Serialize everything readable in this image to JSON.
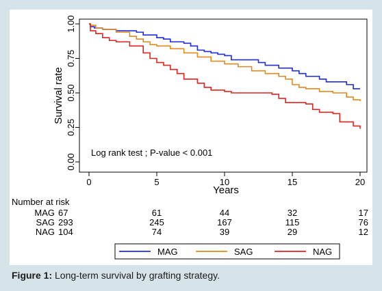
{
  "caption": {
    "label": "Figure 1:",
    "text": "Long-term survival by grafting strategy."
  },
  "annotation": "Log rank test ; P-value < 0.001",
  "risk_table": {
    "header": "Number at risk",
    "rows": [
      {
        "group": "MAG",
        "counts": [
          "67",
          "61",
          "44",
          "32",
          "17"
        ]
      },
      {
        "group": "SAG",
        "counts": [
          "293",
          "245",
          "167",
          "115",
          "76"
        ]
      },
      {
        "group": "NAG",
        "counts": [
          "104",
          "74",
          "39",
          "29",
          "12"
        ]
      }
    ]
  },
  "chart_data": {
    "type": "line",
    "step": true,
    "xlabel": "Years",
    "ylabel": "Survival rate",
    "xlim": [
      0,
      20
    ],
    "ylim": [
      0,
      1
    ],
    "xticks": [
      "0",
      "5",
      "10",
      "15",
      "20"
    ],
    "yticks": [
      "0.00",
      "0.25",
      "0.50",
      "0.75",
      "1.00"
    ],
    "legend_position": "bottom",
    "series": [
      {
        "name": "MAG",
        "color": "#1f2bd4",
        "points": [
          [
            0,
            1.0
          ],
          [
            0.1,
            0.98
          ],
          [
            0.4,
            0.97
          ],
          [
            1.0,
            0.96
          ],
          [
            2.0,
            0.95
          ],
          [
            3.0,
            0.95
          ],
          [
            3.5,
            0.94
          ],
          [
            4.0,
            0.92
          ],
          [
            5.0,
            0.9
          ],
          [
            5.5,
            0.89
          ],
          [
            6.0,
            0.87
          ],
          [
            7.0,
            0.86
          ],
          [
            7.5,
            0.84
          ],
          [
            8.0,
            0.81
          ],
          [
            8.5,
            0.8
          ],
          [
            9.0,
            0.79
          ],
          [
            9.5,
            0.78
          ],
          [
            10.0,
            0.77
          ],
          [
            10.5,
            0.74
          ],
          [
            11.0,
            0.74
          ],
          [
            12.0,
            0.74
          ],
          [
            12.5,
            0.72
          ],
          [
            13.0,
            0.7
          ],
          [
            14.0,
            0.68
          ],
          [
            15.0,
            0.66
          ],
          [
            15.5,
            0.64
          ],
          [
            16.0,
            0.62
          ],
          [
            17.0,
            0.6
          ],
          [
            17.5,
            0.58
          ],
          [
            18.0,
            0.58
          ],
          [
            19.0,
            0.56
          ],
          [
            19.5,
            0.53
          ],
          [
            20.0,
            0.53
          ]
        ]
      },
      {
        "name": "SAG",
        "color": "#e08a1e",
        "points": [
          [
            0,
            1.0
          ],
          [
            0.1,
            0.99
          ],
          [
            0.5,
            0.97
          ],
          [
            1.0,
            0.96
          ],
          [
            2.0,
            0.94
          ],
          [
            3.0,
            0.91
          ],
          [
            3.5,
            0.89
          ],
          [
            4.0,
            0.87
          ],
          [
            4.5,
            0.85
          ],
          [
            5.0,
            0.84
          ],
          [
            6.0,
            0.82
          ],
          [
            7.0,
            0.79
          ],
          [
            8.0,
            0.76
          ],
          [
            9.0,
            0.73
          ],
          [
            10.0,
            0.71
          ],
          [
            11.0,
            0.69
          ],
          [
            12.0,
            0.66
          ],
          [
            13.0,
            0.64
          ],
          [
            14.0,
            0.62
          ],
          [
            14.5,
            0.6
          ],
          [
            15.0,
            0.56
          ],
          [
            15.5,
            0.54
          ],
          [
            16.0,
            0.53
          ],
          [
            17.0,
            0.51
          ],
          [
            18.0,
            0.5
          ],
          [
            19.0,
            0.47
          ],
          [
            19.5,
            0.45
          ],
          [
            20.0,
            0.44
          ]
        ]
      },
      {
        "name": "NAG",
        "color": "#e0231f",
        "points": [
          [
            0,
            1.0
          ],
          [
            0.1,
            0.95
          ],
          [
            0.5,
            0.93
          ],
          [
            1.0,
            0.9
          ],
          [
            1.5,
            0.88
          ],
          [
            2.0,
            0.87
          ],
          [
            3.0,
            0.84
          ],
          [
            4.0,
            0.79
          ],
          [
            4.5,
            0.75
          ],
          [
            5.0,
            0.72
          ],
          [
            5.5,
            0.7
          ],
          [
            6.0,
            0.67
          ],
          [
            6.5,
            0.64
          ],
          [
            7.0,
            0.6
          ],
          [
            8.0,
            0.57
          ],
          [
            8.5,
            0.54
          ],
          [
            9.0,
            0.52
          ],
          [
            10.0,
            0.51
          ],
          [
            10.5,
            0.5
          ],
          [
            12.0,
            0.5
          ],
          [
            13.5,
            0.49
          ],
          [
            14.0,
            0.46
          ],
          [
            14.5,
            0.43
          ],
          [
            16.0,
            0.42
          ],
          [
            16.5,
            0.38
          ],
          [
            17.0,
            0.36
          ],
          [
            18.0,
            0.35
          ],
          [
            18.5,
            0.29
          ],
          [
            19.0,
            0.29
          ],
          [
            19.5,
            0.26
          ],
          [
            20.0,
            0.24
          ]
        ]
      }
    ]
  }
}
